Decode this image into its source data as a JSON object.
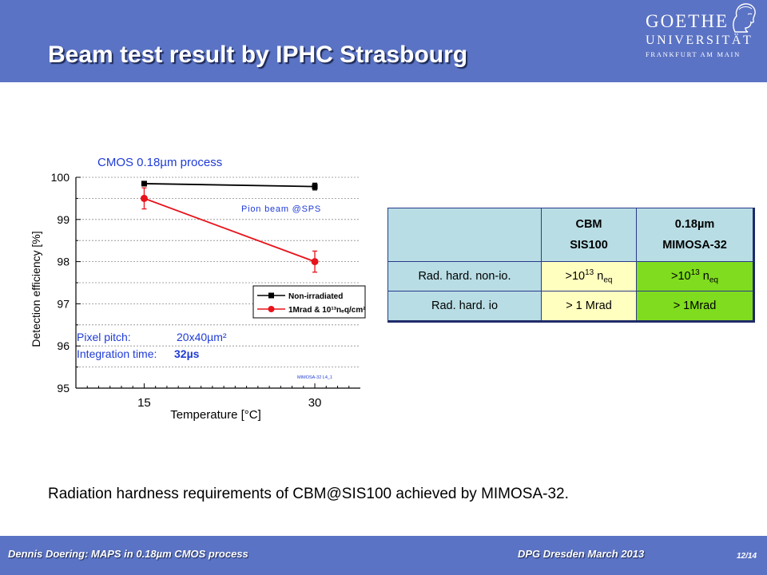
{
  "header": {
    "title": "Beam test result by IPHC Strasbourg",
    "logo": {
      "line1": "GOETHE",
      "line2": "UNIVERSITÄT",
      "line3": "FRANKFURT AM MAIN",
      "icon": "goethe-portrait-icon"
    }
  },
  "chart_data": {
    "type": "line",
    "title": "CMOS 0.18µm process",
    "xlabel": "Temperature [°C]",
    "ylabel": "Detection efficiency [%]",
    "x": [
      15,
      30
    ],
    "xlim": [
      9,
      34
    ],
    "ylim": [
      95,
      100
    ],
    "yticks": [
      95,
      96,
      97,
      98,
      99,
      100
    ],
    "xticks": [
      15,
      30
    ],
    "grid": "horizontal dashed",
    "legend_position": "center-right",
    "series": [
      {
        "name": "Non-irradiated",
        "values": [
          99.85,
          99.78
        ],
        "error": [
          0.05,
          0.08
        ],
        "color": "#000000",
        "marker": "square"
      },
      {
        "name": "1Mrad & 10¹³nₑq/cm²",
        "values": [
          99.5,
          98.0
        ],
        "error": [
          0.25,
          0.25
        ],
        "color": "#e8121a",
        "marker": "circle"
      }
    ],
    "annotations": {
      "beam": "Pion beam @SPS",
      "pixel_pitch_label": "Pixel pitch:",
      "pixel_pitch_value": "20x40µm²",
      "integration_label": "Integration time:",
      "integration_value": "32µs",
      "tag": "MIMOSA-32 L4_1"
    }
  },
  "table": {
    "col1_line1": "CBM",
    "col1_line2": "SIS100",
    "col2_line1": "0.18µm",
    "col2_line2": "MIMOSA-32",
    "row1_label": "Rad. hard. non-io.",
    "row1_c1_base": ">10",
    "row1_c1_exp": "13",
    "row1_c1_unit": " n",
    "row1_c1_sub": "eq",
    "row1_c2_base": ">10",
    "row1_c2_exp": "13",
    "row1_c2_unit": " n",
    "row1_c2_sub": "eq",
    "row2_label": "Rad. hard. io",
    "row2_c1": "> 1 Mrad",
    "row2_c2": "> 1Mrad"
  },
  "conclusion": "Radiation hardness requirements of CBM@SIS100 achieved by MIMOSA-32.",
  "footer": {
    "left": "Dennis Doering: MAPS in 0.18µm CMOS process",
    "middle": "DPG Dresden March 2013",
    "page": "12/14"
  },
  "colors": {
    "header": "#5b73c4",
    "table_head": "#b8dde4",
    "cell_yellow": "#ffffc0",
    "cell_green": "#7fdc1e",
    "irradiated": "#e8121a",
    "annotation_blue": "#1f3bd6"
  }
}
